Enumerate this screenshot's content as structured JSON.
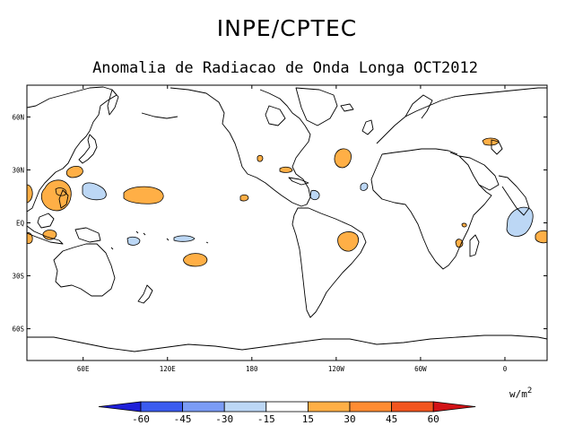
{
  "header": {
    "title": "INPE/CPTEC",
    "subtitle": "Anomalia de Radiacao de Onda Longa OCT2012"
  },
  "map": {
    "lon_min": 20,
    "lon_max": 390,
    "lat_min": -78,
    "lat_max": 78,
    "xticks": [
      {
        "value": 120,
        "label": "120E"
      },
      {
        "value": 180,
        "label": "180"
      },
      {
        "value": 240,
        "label": "120W"
      },
      {
        "value": 300,
        "label": "60W"
      },
      {
        "value": 360,
        "label": "0"
      },
      {
        "value": 420,
        "label": "60E"
      }
    ],
    "yticks": [
      {
        "value": 60,
        "label": "60N"
      },
      {
        "value": 30,
        "label": "30N"
      },
      {
        "value": 0,
        "label": "EQ"
      },
      {
        "value": -30,
        "label": "30S"
      },
      {
        "value": -60,
        "label": "60S"
      }
    ]
  },
  "colorbar": {
    "unit": "w/m",
    "unit_sup": "2",
    "colors": [
      "#1f20d8",
      "#3b5cf0",
      "#7b9cf5",
      "#bcd7f5",
      "#ffffff",
      "#ffaf46",
      "#ff8c32",
      "#f2551e",
      "#d21216"
    ],
    "labels": [
      "-60",
      "-45",
      "-30",
      "-15",
      "15",
      "30",
      "45",
      "60"
    ]
  },
  "anomaly_colors": {
    "positive": "#ffaf46",
    "negative": "#bcd7f5"
  }
}
